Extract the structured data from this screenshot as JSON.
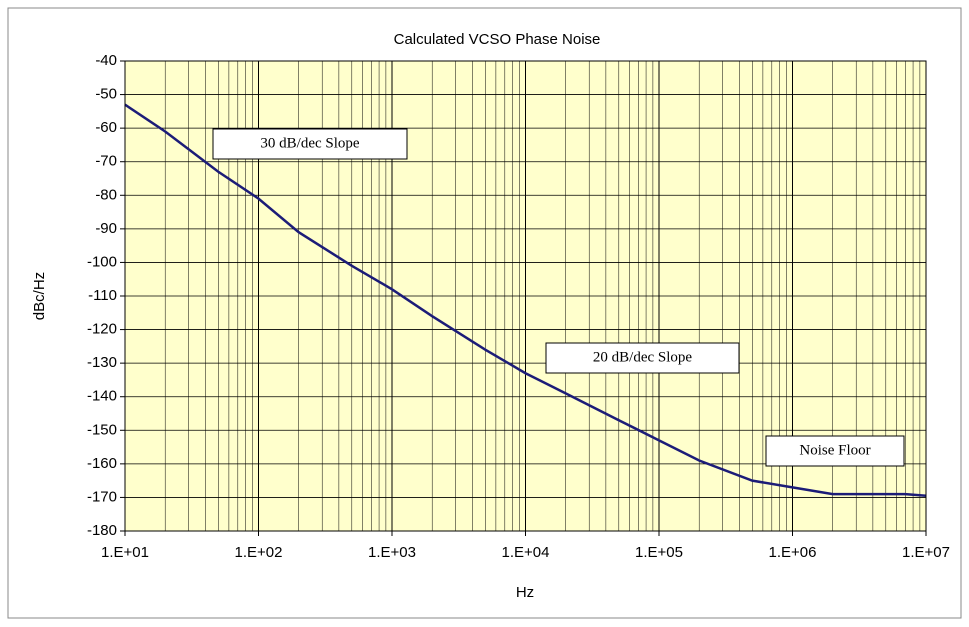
{
  "chart_data": {
    "type": "line",
    "title": "Calculated VCSO Phase Noise",
    "x_label": "Hz",
    "y_label": "dBc/Hz",
    "x_scale": "log",
    "x": [
      10,
      20,
      50,
      100,
      200,
      500,
      1000,
      2000,
      5000,
      10000,
      20000,
      50000,
      100000,
      200000,
      500000,
      1000000,
      2000000,
      5000000,
      7000000,
      10000000
    ],
    "series": [
      {
        "name": "Phase Noise",
        "color": "#1c1c78",
        "values": [
          -53,
          -61,
          -73,
          -81,
          -91,
          -101,
          -108,
          -116,
          -126,
          -133,
          -139,
          -147,
          -153,
          -159,
          -165,
          -167,
          -169,
          -169,
          -169,
          -169.5
        ]
      }
    ],
    "xlim": [
      10,
      10000000
    ],
    "xticks": [
      {
        "value": 10,
        "label": "1.E+01"
      },
      {
        "value": 100,
        "label": "1.E+02"
      },
      {
        "value": 1000,
        "label": "1.E+03"
      },
      {
        "value": 10000,
        "label": "1.E+04"
      },
      {
        "value": 100000,
        "label": "1.E+05"
      },
      {
        "value": 1000000,
        "label": "1.E+06"
      },
      {
        "value": 10000000,
        "label": "1.E+07"
      }
    ],
    "ylim": [
      -180,
      -40
    ],
    "yticks": [
      -180,
      -170,
      -160,
      -150,
      -140,
      -130,
      -120,
      -110,
      -100,
      -90,
      -80,
      -70,
      -60,
      -50,
      -40
    ],
    "grid": true,
    "background": "#ffffcc",
    "annotations": [
      "30 dB/dec Slope",
      "20 dB/dec Slope",
      "Noise Floor"
    ]
  }
}
